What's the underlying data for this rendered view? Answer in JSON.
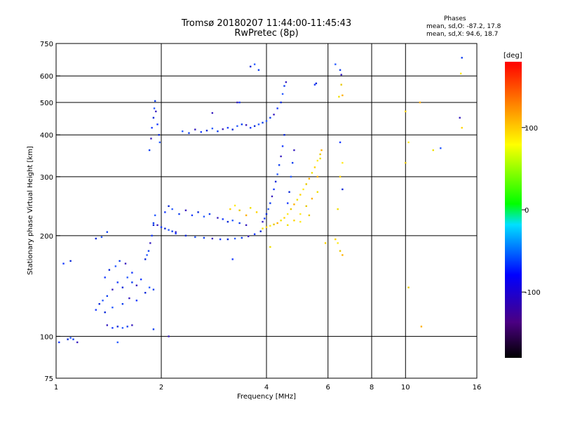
{
  "header": {
    "title": "Tromsø 20180207 11:44:00-11:45:43",
    "subtitle": "RwPretec (8p)"
  },
  "phase_info": {
    "title": "Phases",
    "line1": "mean, sd,O: -87.2, 17.8",
    "line2": "mean, sd,X: 94.6, 18.7"
  },
  "colorbar": {
    "label": "[deg]",
    "ticks": [
      {
        "value": 100,
        "label": "100"
      },
      {
        "value": 0,
        "label": "0"
      },
      {
        "value": -100,
        "label": "-100"
      }
    ],
    "range": [
      -180,
      180
    ]
  },
  "chart_data": {
    "type": "scatter",
    "title": "Tromsø 20180207 11:44:00-11:45:43",
    "subtitle": "RwPretec (8p)",
    "xlabel": "Frequency [MHz]",
    "ylabel": "Stationary phase Virtual Height [km]",
    "x_scale": "log",
    "y_scale": "log",
    "xlim": [
      1,
      16
    ],
    "ylim": [
      75,
      750
    ],
    "x_ticks": [
      1,
      2,
      4,
      6,
      8,
      10,
      16
    ],
    "y_ticks": [
      75,
      100,
      200,
      300,
      400,
      500,
      600,
      750
    ],
    "grid": true,
    "colorbar_label": "[deg]",
    "series": [
      {
        "name": "O",
        "points": [
          [
            1.02,
            96
          ],
          [
            1.08,
            98
          ],
          [
            1.1,
            99
          ],
          [
            1.12,
            98
          ],
          [
            1.15,
            96
          ],
          [
            1.3,
            120
          ],
          [
            1.33,
            125
          ],
          [
            1.36,
            128
          ],
          [
            1.4,
            132
          ],
          [
            1.45,
            138
          ],
          [
            1.5,
            145
          ],
          [
            1.55,
            140
          ],
          [
            1.6,
            150
          ],
          [
            1.65,
            145
          ],
          [
            1.7,
            142
          ],
          [
            1.75,
            148
          ],
          [
            1.38,
            118
          ],
          [
            1.45,
            122
          ],
          [
            1.55,
            125
          ],
          [
            1.62,
            130
          ],
          [
            1.7,
            128
          ],
          [
            1.8,
            135
          ],
          [
            1.85,
            140
          ],
          [
            1.9,
            138
          ],
          [
            1.4,
            108
          ],
          [
            1.45,
            106
          ],
          [
            1.5,
            107
          ],
          [
            1.55,
            106
          ],
          [
            1.6,
            107
          ],
          [
            1.65,
            108
          ],
          [
            1.38,
            150
          ],
          [
            1.42,
            158
          ],
          [
            1.48,
            162
          ],
          [
            1.52,
            168
          ],
          [
            1.58,
            165
          ],
          [
            1.65,
            155
          ],
          [
            1.8,
            170
          ],
          [
            1.82,
            175
          ],
          [
            1.84,
            180
          ],
          [
            1.86,
            190
          ],
          [
            1.88,
            200
          ],
          [
            1.9,
            215
          ],
          [
            1.92,
            230
          ],
          [
            1.85,
            360
          ],
          [
            1.87,
            390
          ],
          [
            1.88,
            420
          ],
          [
            1.9,
            450
          ],
          [
            1.91,
            480
          ],
          [
            1.92,
            505
          ],
          [
            1.93,
            470
          ],
          [
            1.95,
            430
          ],
          [
            1.97,
            400
          ],
          [
            1.98,
            380
          ],
          [
            1.9,
            218
          ],
          [
            1.95,
            215
          ],
          [
            2.0,
            212
          ],
          [
            2.05,
            210
          ],
          [
            2.1,
            208
          ],
          [
            2.15,
            206
          ],
          [
            2.2,
            205
          ],
          [
            2.05,
            235
          ],
          [
            2.1,
            245
          ],
          [
            2.15,
            240
          ],
          [
            2.25,
            232
          ],
          [
            2.35,
            238
          ],
          [
            2.45,
            230
          ],
          [
            2.55,
            235
          ],
          [
            2.65,
            228
          ],
          [
            2.75,
            232
          ],
          [
            2.9,
            226
          ],
          [
            3.0,
            224
          ],
          [
            3.1,
            220
          ],
          [
            3.2,
            222
          ],
          [
            3.35,
            218
          ],
          [
            3.5,
            215
          ],
          [
            2.2,
            203
          ],
          [
            2.35,
            200
          ],
          [
            2.5,
            198
          ],
          [
            2.65,
            197
          ],
          [
            2.8,
            196
          ],
          [
            2.95,
            195
          ],
          [
            3.1,
            195
          ],
          [
            3.25,
            196
          ],
          [
            3.4,
            197
          ],
          [
            3.55,
            199
          ],
          [
            3.7,
            202
          ],
          [
            3.85,
            206
          ],
          [
            2.3,
            410
          ],
          [
            2.4,
            405
          ],
          [
            2.5,
            415
          ],
          [
            2.6,
            408
          ],
          [
            2.7,
            412
          ],
          [
            2.8,
            418
          ],
          [
            2.9,
            410
          ],
          [
            3.0,
            416
          ],
          [
            3.1,
            420
          ],
          [
            3.2,
            415
          ],
          [
            3.3,
            425
          ],
          [
            3.4,
            430
          ],
          [
            3.5,
            428
          ],
          [
            3.6,
            420
          ],
          [
            3.7,
            425
          ],
          [
            3.8,
            430
          ],
          [
            3.9,
            435
          ],
          [
            3.3,
            500
          ],
          [
            3.35,
            500
          ],
          [
            3.6,
            640
          ],
          [
            3.7,
            650
          ],
          [
            3.8,
            625
          ],
          [
            3.9,
            220
          ],
          [
            3.95,
            225
          ],
          [
            4.0,
            232
          ],
          [
            4.05,
            240
          ],
          [
            4.1,
            250
          ],
          [
            4.15,
            262
          ],
          [
            4.2,
            275
          ],
          [
            4.25,
            290
          ],
          [
            4.3,
            305
          ],
          [
            4.35,
            325
          ],
          [
            4.4,
            345
          ],
          [
            4.45,
            370
          ],
          [
            4.5,
            400
          ],
          [
            4.0,
            440
          ],
          [
            4.1,
            450
          ],
          [
            4.2,
            460
          ],
          [
            4.3,
            480
          ],
          [
            4.4,
            500
          ],
          [
            4.45,
            530
          ],
          [
            4.5,
            560
          ],
          [
            4.55,
            575
          ],
          [
            4.6,
            250
          ],
          [
            4.65,
            270
          ],
          [
            4.7,
            300
          ],
          [
            4.75,
            330
          ],
          [
            4.8,
            360
          ],
          [
            5.5,
            565
          ],
          [
            5.55,
            570
          ],
          [
            6.3,
            650
          ],
          [
            6.5,
            625
          ],
          [
            6.55,
            605
          ],
          [
            1.05,
            165
          ],
          [
            1.1,
            168
          ],
          [
            1.5,
            96
          ],
          [
            1.9,
            105
          ],
          [
            2.1,
            100
          ],
          [
            3.2,
            170
          ],
          [
            1.3,
            196
          ],
          [
            1.35,
            198
          ],
          [
            1.4,
            205
          ],
          [
            2.8,
            465
          ],
          [
            6.5,
            380
          ],
          [
            6.6,
            275
          ],
          [
            12.6,
            365
          ],
          [
            14.5,
            680
          ],
          [
            14.3,
            450
          ]
        ]
      },
      {
        "name": "X",
        "points": [
          [
            3.9,
            210
          ],
          [
            4.0,
            212
          ],
          [
            4.1,
            214
          ],
          [
            4.2,
            216
          ],
          [
            4.3,
            218
          ],
          [
            4.4,
            222
          ],
          [
            4.5,
            226
          ],
          [
            4.6,
            232
          ],
          [
            4.7,
            240
          ],
          [
            4.8,
            248
          ],
          [
            4.9,
            256
          ],
          [
            5.0,
            265
          ],
          [
            5.1,
            275
          ],
          [
            5.2,
            285
          ],
          [
            5.3,
            296
          ],
          [
            5.4,
            308
          ],
          [
            5.5,
            320
          ],
          [
            5.6,
            335
          ],
          [
            5.7,
            350
          ],
          [
            5.75,
            360
          ],
          [
            4.6,
            215
          ],
          [
            4.8,
            222
          ],
          [
            5.0,
            232
          ],
          [
            5.2,
            245
          ],
          [
            5.4,
            258
          ],
          [
            5.6,
            270
          ],
          [
            3.15,
            240
          ],
          [
            3.25,
            246
          ],
          [
            3.35,
            238
          ],
          [
            3.5,
            230
          ],
          [
            3.6,
            242
          ],
          [
            3.75,
            235
          ],
          [
            5.0,
            220
          ],
          [
            5.3,
            230
          ],
          [
            5.6,
            300
          ],
          [
            5.7,
            340
          ],
          [
            6.3,
            195
          ],
          [
            6.4,
            190
          ],
          [
            6.5,
            180
          ],
          [
            6.6,
            175
          ],
          [
            6.4,
            240
          ],
          [
            6.5,
            300
          ],
          [
            6.6,
            330
          ],
          [
            6.55,
            565
          ],
          [
            6.6,
            525
          ],
          [
            6.45,
            520
          ],
          [
            10.0,
            470
          ],
          [
            10.2,
            380
          ],
          [
            10.0,
            330
          ],
          [
            11.0,
            500
          ],
          [
            12.0,
            360
          ],
          [
            14.5,
            420
          ],
          [
            14.4,
            610
          ],
          [
            10.2,
            140
          ],
          [
            11.1,
            107
          ],
          [
            4.1,
            185
          ],
          [
            5.9,
            190
          ]
        ]
      }
    ]
  }
}
